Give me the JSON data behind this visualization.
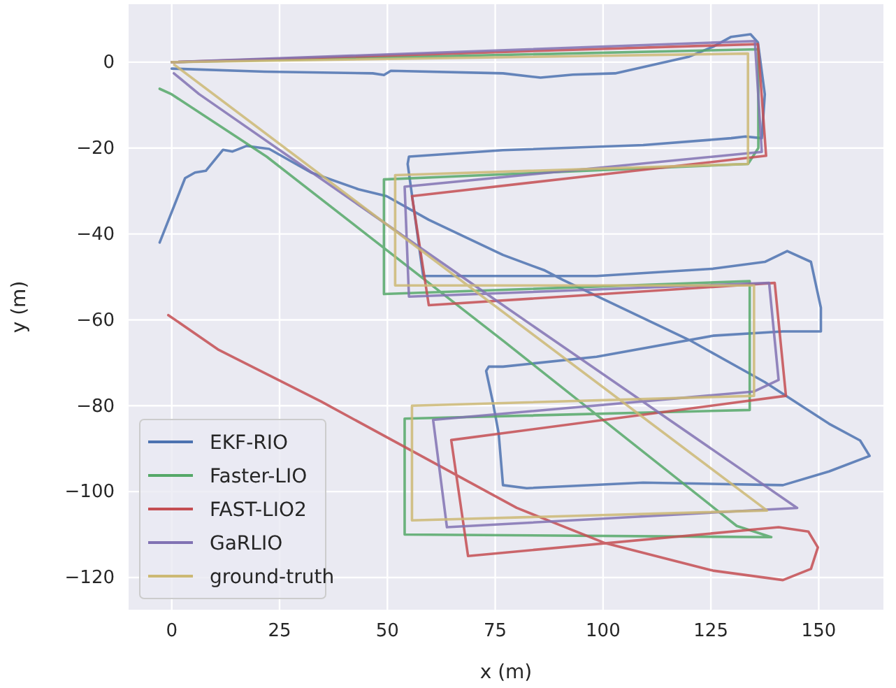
{
  "chart_data": {
    "type": "line",
    "xlabel": "x (m)",
    "ylabel": "y (m)",
    "xlim": [
      -10,
      165
    ],
    "ylim": [
      -127.5,
      13.5
    ],
    "xticks": [
      0,
      25,
      50,
      75,
      100,
      125,
      150
    ],
    "yticks": [
      0,
      {
        "value": -20,
        "label": "−20"
      },
      {
        "value": -40,
        "label": "−40"
      },
      {
        "value": -60,
        "label": "−60"
      },
      {
        "value": -80,
        "label": "−80"
      },
      {
        "value": -100,
        "label": "−100"
      },
      {
        "value": -120,
        "label": "−120"
      }
    ],
    "grid": true,
    "legend": "bottom left",
    "marker": "none",
    "line_style": "solid",
    "series": [
      {
        "name": "EKF-RIO",
        "color": "#4c72b0",
        "x": [
          0,
          21.6,
          46.6,
          49.2,
          50.8,
          76.8,
          85.5,
          93,
          102.8,
          120,
          125.5,
          129.7,
          134.2,
          135.9,
          137.5,
          136.8,
          133,
          129.7,
          109.3,
          76.8,
          55,
          54.7,
          58.3,
          98.5,
          125.5,
          137.5,
          142.7,
          148.2,
          150.5,
          150.5,
          141.7,
          125.5,
          98.5,
          76.8,
          73.5,
          72.9,
          74.5,
          75.8,
          76.8,
          82.3,
          109.3,
          141.7,
          152.4,
          161.8,
          159.6,
          152.4,
          137.5,
          120,
          90.7,
          86.5,
          76.8,
          59.6,
          49.8,
          43.3,
          32.3,
          22.6,
          17.4,
          14.1,
          11.9,
          7.9,
          5.4,
          3.1,
          -2.8
        ],
        "values": [
          -1.5,
          -2.2,
          -2.6,
          -3,
          -2,
          -2.6,
          -3.6,
          -2.9,
          -2.6,
          1.3,
          3.6,
          5.9,
          6.5,
          4.6,
          -7.5,
          -17.7,
          -17.3,
          -17.7,
          -19.3,
          -20.5,
          -22,
          -23.7,
          -49.8,
          -49.8,
          -48.1,
          -46.5,
          -44,
          -46.5,
          -57.2,
          -62.7,
          -62.7,
          -63.7,
          -68.6,
          -70.9,
          -70.9,
          -71.9,
          -79.4,
          -86.5,
          -98.5,
          -99.2,
          -97.9,
          -98.5,
          -95.3,
          -91.7,
          -88.1,
          -84.2,
          -74.5,
          -64.7,
          -50.7,
          -48.5,
          -44.9,
          -36.7,
          -31.2,
          -29.6,
          -25.7,
          -20.2,
          -19.5,
          -20.8,
          -20.4,
          -25.3,
          -25.7,
          -27,
          -42
        ]
      },
      {
        "name": "Faster-LIO",
        "color": "#55a868",
        "x": [
          -2.8,
          0,
          22,
          77,
          131,
          139,
          54,
          54,
          134,
          134,
          49.2,
          49.2,
          133.6,
          136,
          136,
          0
        ],
        "values": [
          -6.2,
          -7.5,
          -22,
          -65,
          -108,
          -110.6,
          -110,
          -83,
          -81,
          -51,
          -54,
          -27.3,
          -23.7,
          -20,
          3,
          0
        ]
      },
      {
        "name": "FAST-LIO2",
        "color": "#c44e52",
        "x": [
          0,
          135.9,
          137.8,
          55.7,
          59.6,
          139.8,
          142.4,
          64.8,
          68.7,
          140.7,
          147.6,
          149.8,
          148.2,
          141.7,
          125.5,
          100.5,
          80,
          34.6,
          10.9,
          -0.8
        ],
        "values": [
          0,
          4.2,
          -21.8,
          -31.2,
          -56.6,
          -51.4,
          -77.7,
          -88,
          -115,
          -108.3,
          -109.3,
          -113,
          -118,
          -120.6,
          -118.4,
          -112,
          -103.8,
          -79,
          -67,
          -58.9
        ]
      },
      {
        "name": "GaRLIO",
        "color": "#8172b3",
        "x": [
          0,
          135.2,
          136.8,
          54,
          55,
          138.5,
          140.7,
          135,
          60.6,
          63.8,
          145,
          76.8,
          6.3,
          0.5
        ],
        "values": [
          0,
          4.9,
          -20.9,
          -29,
          -54.6,
          -51.4,
          -74,
          -76.7,
          -83.3,
          -108.3,
          -103.8,
          -56.6,
          -7.4,
          -2.6
        ]
      },
      {
        "name": "ground-truth",
        "color": "#ccb974",
        "x": [
          0,
          133.6,
          133.6,
          51.8,
          51.8,
          135,
          135,
          55.7,
          55.7,
          138,
          0.6
        ],
        "values": [
          0,
          2,
          -23.7,
          -26.3,
          -52,
          -52,
          -77.7,
          -80,
          -106.7,
          -104.4,
          -0.6
        ]
      }
    ]
  }
}
